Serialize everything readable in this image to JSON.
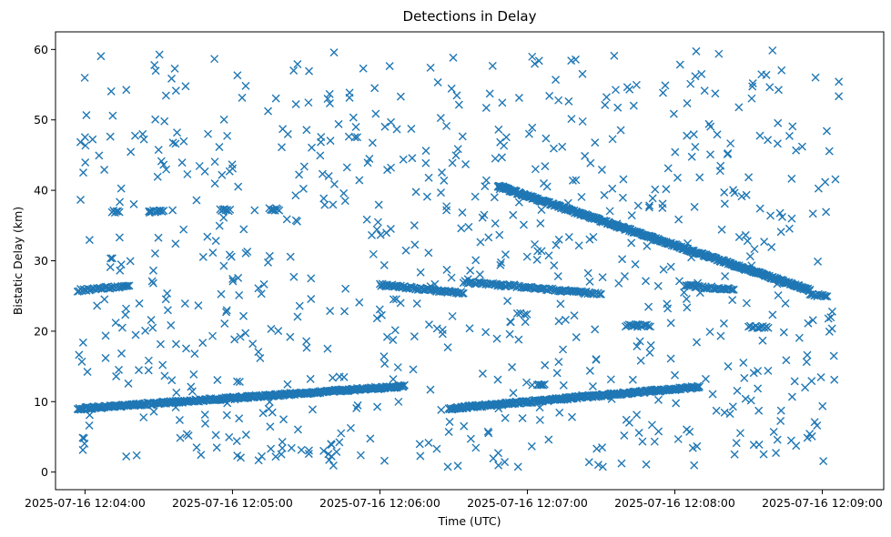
{
  "chart_data": {
    "type": "scatter",
    "title": "Detections in Delay",
    "xlabel": "Time (UTC)",
    "ylabel": "Bistatic Delay (km)",
    "x_is_time": true,
    "xlim": [
      "2025-07-16 12:03:48",
      "2025-07-16 12:09:25"
    ],
    "ylim": [
      -2.5,
      62.5
    ],
    "x_ticks": [
      {
        "time": "2025-07-16 12:04:00",
        "label": "2025-07-16 12:04:00"
      },
      {
        "time": "2025-07-16 12:05:00",
        "label": "2025-07-16 12:05:00"
      },
      {
        "time": "2025-07-16 12:06:00",
        "label": "2025-07-16 12:06:00"
      },
      {
        "time": "2025-07-16 12:07:00",
        "label": "2025-07-16 12:07:00"
      },
      {
        "time": "2025-07-16 12:08:00",
        "label": "2025-07-16 12:08:00"
      },
      {
        "time": "2025-07-16 12:09:00",
        "label": "2025-07-16 12:09:00"
      }
    ],
    "y_ticks": [
      0,
      10,
      20,
      30,
      40,
      50,
      60
    ],
    "marker": "x",
    "color": "#1f77b4",
    "grid": false,
    "legend": "none",
    "tracks": [
      {
        "x": [
          "2025-07-16 12:03:57",
          "2025-07-16 12:06:10"
        ],
        "y": [
          9.0,
          12.2
        ],
        "step_s": 0.35
      },
      {
        "x": [
          "2025-07-16 12:06:28",
          "2025-07-16 12:08:10"
        ],
        "y": [
          9.0,
          12.1
        ],
        "step_s": 0.35
      },
      {
        "x": [
          "2025-07-16 12:03:57",
          "2025-07-16 12:04:18"
        ],
        "y": [
          25.8,
          26.4
        ],
        "step_s": 0.6
      },
      {
        "x": [
          "2025-07-16 12:06:00",
          "2025-07-16 12:06:34"
        ],
        "y": [
          26.6,
          25.4
        ],
        "step_s": 0.5
      },
      {
        "x": [
          "2025-07-16 12:06:34",
          "2025-07-16 12:07:30"
        ],
        "y": [
          27.0,
          25.3
        ],
        "step_s": 0.6
      },
      {
        "x": [
          "2025-07-16 12:06:48",
          "2025-07-16 12:08:55"
        ],
        "y": [
          40.6,
          25.8
        ],
        "step_s": 0.28
      },
      {
        "x": [
          "2025-07-16 12:08:04",
          "2025-07-16 12:08:24"
        ],
        "y": [
          26.5,
          25.9
        ],
        "step_s": 0.6
      },
      {
        "x": [
          "2025-07-16 12:08:55",
          "2025-07-16 12:09:02"
        ],
        "y": [
          25.2,
          25.0
        ],
        "step_s": 0.6
      },
      {
        "x": [
          "2025-07-16 12:07:40",
          "2025-07-16 12:07:50"
        ],
        "y": [
          20.8,
          20.8
        ],
        "step_s": 0.7
      },
      {
        "x": [
          "2025-07-16 12:08:30",
          "2025-07-16 12:08:38"
        ],
        "y": [
          20.6,
          20.6
        ],
        "step_s": 0.7
      },
      {
        "x": [
          "2025-07-16 12:04:11",
          "2025-07-16 12:04:14"
        ],
        "y": [
          37.0,
          37.0
        ],
        "step_s": 0.6
      },
      {
        "x": [
          "2025-07-16 12:04:26",
          "2025-07-16 12:04:32"
        ],
        "y": [
          37.0,
          37.0
        ],
        "step_s": 0.6
      },
      {
        "x": [
          "2025-07-16 12:04:55",
          "2025-07-16 12:04:59"
        ],
        "y": [
          37.2,
          37.2
        ],
        "step_s": 0.6
      },
      {
        "x": [
          "2025-07-16 12:05:15",
          "2025-07-16 12:05:19"
        ],
        "y": [
          37.3,
          37.3
        ],
        "step_s": 0.6
      },
      {
        "x": [
          "2025-07-16 12:07:04",
          "2025-07-16 12:07:07"
        ],
        "y": [
          12.4,
          12.4
        ],
        "step_s": 0.6
      }
    ],
    "clutter": {
      "count": 760,
      "x_range": [
        "2025-07-16 12:03:57",
        "2025-07-16 12:09:07"
      ],
      "y_range": [
        0.7,
        59.9
      ],
      "seed": 20250716
    }
  }
}
